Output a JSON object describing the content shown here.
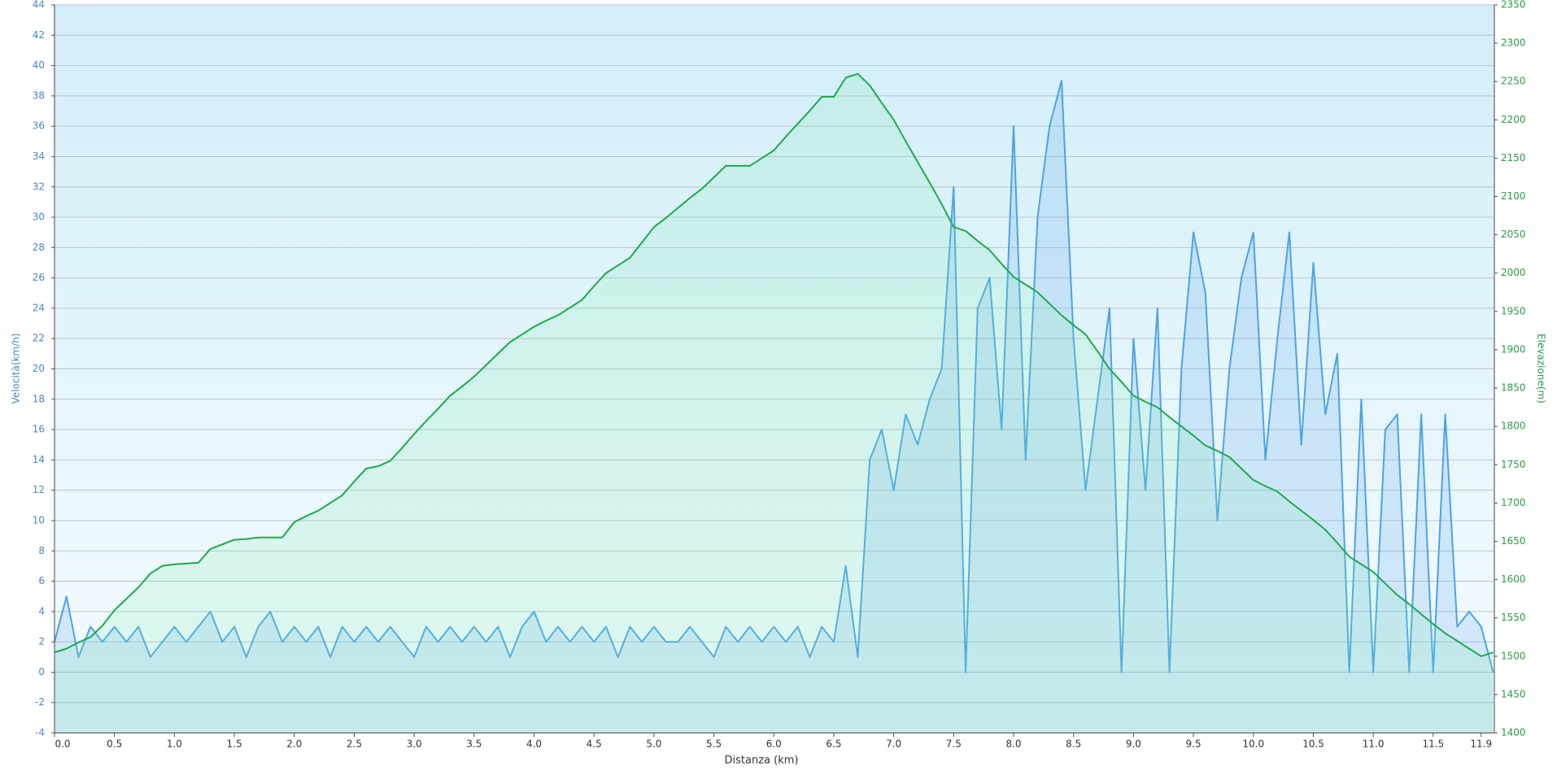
{
  "chart_data": {
    "type": "line",
    "xlabel": "Distanza  (km)",
    "ylabel": "Velocità(km/h)",
    "y2label": "Elevazione(m)",
    "xlim": [
      0,
      12.01
    ],
    "ylim": [
      -4,
      44
    ],
    "y2lim": [
      1400,
      2350
    ],
    "grid": true,
    "xticks": [
      {
        "value": 0,
        "label": "0.0"
      },
      0.5,
      {
        "value": 1,
        "label": "1.0"
      },
      1.5,
      {
        "value": 2,
        "label": "2.0"
      },
      2.5,
      {
        "value": 3,
        "label": "3.0"
      },
      3.5,
      {
        "value": 4,
        "label": "4.0"
      },
      4.5,
      {
        "value": 5,
        "label": "5.0"
      },
      5.5,
      {
        "value": 6,
        "label": "6.0"
      },
      6.5,
      {
        "value": 7,
        "label": "7.0"
      },
      7.5,
      {
        "value": 8,
        "label": "8.0"
      },
      8.5,
      {
        "value": 9,
        "label": "9.0"
      },
      9.5,
      {
        "value": 10,
        "label": "10.0"
      },
      10.5,
      {
        "value": 11,
        "label": "11.0"
      },
      11.5,
      11.9
    ],
    "yticks": [
      -4,
      -2,
      0,
      2,
      4,
      6,
      8,
      10,
      12,
      14,
      16,
      18,
      20,
      22,
      24,
      26,
      28,
      30,
      32,
      34,
      36,
      38,
      40,
      42,
      44
    ],
    "y2ticks": [
      1400,
      1450,
      1500,
      1550,
      1600,
      1650,
      1700,
      1750,
      1800,
      1850,
      1900,
      1950,
      2000,
      2050,
      2100,
      2150,
      2200,
      2250,
      2300,
      2350
    ],
    "x": [
      0,
      0.1,
      0.2,
      0.3,
      0.4,
      0.5,
      0.6,
      0.7,
      0.8,
      0.9,
      1,
      1.1,
      1.2,
      1.3,
      1.4,
      1.5,
      1.6,
      1.7,
      1.8,
      1.9,
      2,
      2.1,
      2.2,
      2.3,
      2.4,
      2.5,
      2.6,
      2.7,
      2.8,
      2.9,
      3,
      3.1,
      3.2,
      3.3,
      3.4,
      3.5,
      3.6,
      3.7,
      3.8,
      3.9,
      4,
      4.1,
      4.2,
      4.3,
      4.4,
      4.5,
      4.6,
      4.7,
      4.8,
      4.9,
      5,
      5.1,
      5.2,
      5.3,
      5.4,
      5.5,
      5.6,
      5.7,
      5.8,
      5.9,
      6,
      6.1,
      6.2,
      6.3,
      6.4,
      6.5,
      6.6,
      6.7,
      6.8,
      6.9,
      7,
      7.1,
      7.2,
      7.3,
      7.4,
      7.5,
      7.6,
      7.7,
      7.8,
      7.9,
      8,
      8.1,
      8.2,
      8.3,
      8.4,
      8.5,
      8.6,
      8.7,
      8.8,
      8.9,
      9,
      9.1,
      9.2,
      9.3,
      9.4,
      9.5,
      9.6,
      9.7,
      9.8,
      9.9,
      10,
      10.1,
      10.2,
      10.3,
      10.4,
      10.5,
      10.6,
      10.7,
      10.8,
      10.9,
      11,
      11.1,
      11.2,
      11.3,
      11.4,
      11.5,
      11.6,
      11.7,
      11.8,
      11.9,
      12
    ],
    "series": [
      {
        "name": "Velocità",
        "color": "#4da3e8",
        "fill": "rgba(100,170,235,0.22)",
        "values": [
          2,
          5,
          1,
          3,
          2,
          3,
          2,
          3,
          1,
          2,
          3,
          2,
          3,
          4,
          2,
          3,
          1,
          3,
          4,
          2,
          3,
          2,
          3,
          1,
          3,
          2,
          3,
          2,
          3,
          2,
          1,
          3,
          2,
          3,
          2,
          3,
          2,
          3,
          1,
          3,
          4,
          2,
          3,
          2,
          3,
          2,
          3,
          1,
          3,
          2,
          3,
          2,
          2,
          3,
          2,
          1,
          3,
          2,
          3,
          2,
          3,
          2,
          3,
          1,
          3,
          2,
          7,
          1,
          14,
          16,
          12,
          17,
          15,
          18,
          20,
          32,
          0,
          24,
          26,
          16,
          36,
          14,
          30,
          36,
          39,
          22,
          12,
          18,
          24,
          0,
          22,
          12,
          24,
          0,
          20,
          29,
          25,
          10,
          20,
          26,
          29,
          14,
          22,
          29,
          15,
          27,
          17,
          21,
          0,
          18,
          0,
          16,
          17,
          0,
          17,
          0,
          17,
          3,
          4,
          3,
          0
        ]
      },
      {
        "name": "Elevazione",
        "color": "#1faa4a",
        "fill": "rgba(120,235,170,0.18)",
        "axis": "y2",
        "values": [
          1505,
          1510,
          1518,
          1525,
          1540,
          1560,
          1575,
          1590,
          1608,
          1618,
          1620,
          1621,
          1622,
          1640,
          1646,
          1652,
          1653,
          1655,
          1655,
          1655,
          1675,
          1683,
          1690,
          1700,
          1710,
          1728,
          1745,
          1748,
          1755,
          1772,
          1790,
          1807,
          1823,
          1840,
          1852,
          1865,
          1880,
          1895,
          1910,
          1920,
          1930,
          1938,
          1945,
          1955,
          1965,
          1983,
          2000,
          2010,
          2020,
          2040,
          2060,
          2072,
          2085,
          2098,
          2110,
          2125,
          2140,
          2140,
          2140,
          2150,
          2160,
          2178,
          2195,
          2212,
          2230,
          2230,
          2255,
          2260,
          2245,
          2222,
          2200,
          2172,
          2145,
          2118,
          2090,
          2060,
          2055,
          2042,
          2030,
          2012,
          1995,
          1985,
          1975,
          1960,
          1945,
          1932,
          1920,
          1898,
          1875,
          1858,
          1840,
          1832,
          1825,
          1812,
          1800,
          1788,
          1775,
          1768,
          1760,
          1745,
          1730,
          1722,
          1715,
          1702,
          1690,
          1678,
          1665,
          1648,
          1630,
          1620,
          1610,
          1595,
          1580,
          1568,
          1555,
          1542,
          1530,
          1520,
          1510,
          1500,
          1505
        ]
      }
    ]
  }
}
